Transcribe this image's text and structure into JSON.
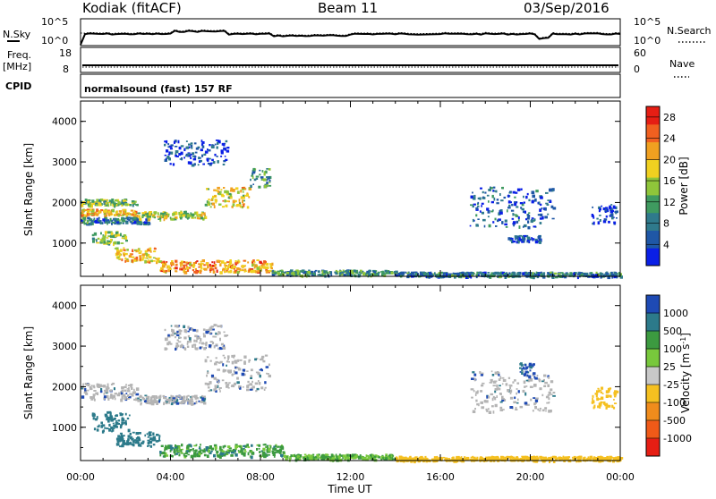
{
  "header": {
    "station": "Kodiak (fitACF)",
    "beam": "Beam 11",
    "date": "03/Sep/2016"
  },
  "top_panels": {
    "nsky_label": "N.Sky",
    "nsky_ticks": [
      "10^5",
      "10^0"
    ],
    "nsearch_label": "N.Search",
    "nsearch_ticks": [
      "10^5",
      "10^0"
    ],
    "freq_label": "Freq.",
    "freq_unit": "[MHz]",
    "freq_ticks": [
      "18",
      "8"
    ],
    "nave_label": "Nave",
    "nave_ticks": [
      "60",
      "0"
    ],
    "cpid_label": "CPID",
    "cpid_text": "normalsound (fast) 157 RF"
  },
  "colors": {
    "power_scale": [
      "#0a1fe6",
      "#1f57a6",
      "#2f7a8c",
      "#3f9a60",
      "#8fc53a",
      "#f0d020",
      "#f0a020",
      "#f06020",
      "#e61e14"
    ],
    "velocity_scale": [
      "#e61e14",
      "#f05a18",
      "#f08c1c",
      "#f5c020",
      "#c8c8c8",
      "#78c83c",
      "#3c9a40",
      "#2c7a8a",
      "#1e4ab4"
    ],
    "ground_scatter": "#b4b4b4"
  },
  "chart_data": [
    {
      "type": "heatmap",
      "name": "power",
      "ylabel": "Slant Range [km]",
      "xlabel": "Time UT",
      "ylim": [
        180,
        4500
      ],
      "xlim": [
        0,
        24
      ],
      "x_ticks": [
        "00:00",
        "04:00",
        "08:00",
        "12:00",
        "16:00",
        "20:00",
        "00:00"
      ],
      "y_ticks": [
        "1000",
        "2000",
        "3000",
        "4000"
      ],
      "colorbar_label": "Power [dB]",
      "colorbar_ticks": [
        "4",
        "8",
        "12",
        "16",
        "20",
        "24",
        "28"
      ],
      "colorbar_range": [
        0,
        30
      ],
      "regions": [
        {
          "t0": 0.0,
          "t1": 2.5,
          "r0": 1950,
          "r1": 2100,
          "level": 14
        },
        {
          "t0": 0.0,
          "t1": 2.5,
          "r0": 1700,
          "r1": 1850,
          "level": 20
        },
        {
          "t0": 0.0,
          "t1": 3.0,
          "r0": 1500,
          "r1": 1650,
          "level": 8
        },
        {
          "t0": 2.5,
          "t1": 5.5,
          "r0": 1600,
          "r1": 1800,
          "level": 16
        },
        {
          "t0": 5.5,
          "t1": 7.5,
          "r0": 1900,
          "r1": 2400,
          "level": 18
        },
        {
          "t0": 7.5,
          "t1": 8.4,
          "r0": 2400,
          "r1": 2850,
          "level": 10
        },
        {
          "t0": 0.5,
          "t1": 2.0,
          "r0": 1000,
          "r1": 1300,
          "level": 14
        },
        {
          "t0": 1.5,
          "t1": 3.5,
          "r0": 550,
          "r1": 900,
          "level": 20
        },
        {
          "t0": 3.5,
          "t1": 8.5,
          "r0": 300,
          "r1": 600,
          "level": 22
        },
        {
          "t0": 8.5,
          "t1": 14.0,
          "r0": 220,
          "r1": 350,
          "level": 10
        },
        {
          "t0": 14.0,
          "t1": 24.0,
          "r0": 190,
          "r1": 300,
          "level": 8
        },
        {
          "t0": 3.7,
          "t1": 6.5,
          "r0": 2950,
          "r1": 3550,
          "level": 4
        },
        {
          "t0": 17.3,
          "t1": 21.0,
          "r0": 1400,
          "r1": 2400,
          "level": 6
        },
        {
          "t0": 19.0,
          "t1": 20.5,
          "r0": 1050,
          "r1": 1200,
          "level": 4
        },
        {
          "t0": 22.7,
          "t1": 23.8,
          "r0": 1500,
          "r1": 2000,
          "level": 4
        }
      ]
    },
    {
      "type": "heatmap",
      "name": "velocity",
      "ylabel": "Slant Range [km]",
      "xlabel": "Time UT",
      "ylim": [
        180,
        4500
      ],
      "xlim": [
        0,
        24
      ],
      "x_ticks": [
        "00:00",
        "04:00",
        "08:00",
        "12:00",
        "16:00",
        "20:00",
        "00:00"
      ],
      "y_ticks": [
        "1000",
        "2000",
        "3000",
        "4000"
      ],
      "colorbar_label": "Velocity [m s^-1]",
      "colorbar_ticks": [
        "1000",
        "500",
        "100",
        "25",
        "-25",
        "-100",
        "-500",
        "-1000"
      ],
      "regions": [
        {
          "t0": 0.0,
          "t1": 2.5,
          "r0": 1700,
          "r1": 2100,
          "v": 0
        },
        {
          "t0": 2.5,
          "t1": 5.5,
          "r0": 1600,
          "r1": 1800,
          "v": 0
        },
        {
          "t0": 5.5,
          "t1": 8.4,
          "r0": 1900,
          "r1": 2800,
          "v": 0
        },
        {
          "t0": 0.5,
          "t1": 2.2,
          "r0": 900,
          "r1": 1400,
          "v": 300
        },
        {
          "t0": 1.5,
          "t1": 3.5,
          "r0": 550,
          "r1": 900,
          "v": 200
        },
        {
          "t0": 3.5,
          "t1": 9.0,
          "r0": 300,
          "r1": 600,
          "v": 80
        },
        {
          "t0": 9.0,
          "t1": 14.0,
          "r0": 220,
          "r1": 350,
          "v": 60
        },
        {
          "t0": 14.0,
          "t1": 24.0,
          "r0": 190,
          "r1": 300,
          "v": -60
        },
        {
          "t0": 3.7,
          "t1": 6.5,
          "r0": 2950,
          "r1": 3550,
          "v": 0
        },
        {
          "t0": 17.3,
          "t1": 21.0,
          "r0": 1400,
          "r1": 2400,
          "v": 0
        },
        {
          "t0": 19.5,
          "t1": 20.2,
          "r0": 2200,
          "r1": 2600,
          "v": 600
        },
        {
          "t0": 22.7,
          "t1": 23.8,
          "r0": 1500,
          "r1": 2000,
          "v": -30
        }
      ]
    }
  ]
}
